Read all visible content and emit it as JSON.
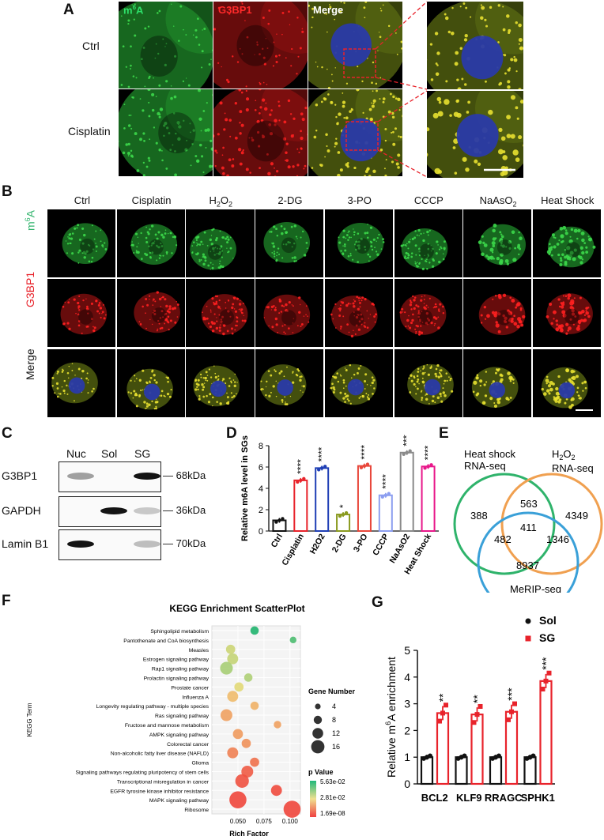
{
  "panels": {
    "A": "A",
    "B": "B",
    "C": "C",
    "D": "D",
    "E": "E",
    "F": "F",
    "G": "G"
  },
  "panel_a": {
    "channels": [
      "m6A",
      "G3BP1",
      "Merge"
    ],
    "rows": [
      "Ctrl",
      "Cisplatin"
    ]
  },
  "panel_b": {
    "conditions": [
      "Ctrl",
      "Cisplatin",
      "H2O2",
      "2-DG",
      "3-PO",
      "CCCP",
      "NaAsO2",
      "Heat Shock"
    ],
    "rows": [
      "m6A",
      "G3BP1",
      "Merge"
    ]
  },
  "panel_c": {
    "lanes": [
      "Nuc",
      "Sol",
      "SG"
    ],
    "proteins": [
      {
        "name": "G3BP1",
        "size": "68kDa",
        "bands": [
          0.3,
          0,
          1.0
        ]
      },
      {
        "name": "GAPDH",
        "size": "36kDa",
        "bands": [
          0,
          1.0,
          0.1
        ]
      },
      {
        "name": "Lamin B1",
        "size": "70kDa",
        "bands": [
          1.0,
          0,
          0.15
        ]
      }
    ]
  },
  "panel_e": {
    "sets": [
      "Heat shock RNA-seq",
      "H2O2 RNA-seq",
      "MeRIP-seq"
    ],
    "colors": [
      "#2fb36b",
      "#f0a050",
      "#3aa0d8"
    ],
    "regions": {
      "hs_only": "388",
      "h2o2_only": "4349",
      "merip_only": "8937",
      "hs_h2o2": "563",
      "hs_merip": "482",
      "h2o2_merip": "1346",
      "all": "411"
    }
  },
  "chart_data": [
    {
      "panel": "D",
      "type": "bar",
      "ylabel": "Relative m6A level in SGs",
      "ylim": [
        0,
        8
      ],
      "yticks": [
        0,
        2,
        4,
        6,
        8
      ],
      "categories": [
        "Ctrl",
        "Cisplatin",
        "H2O2",
        "2-DG",
        "3-PO",
        "CCCP",
        "NaAsO2",
        "Heat Shock"
      ],
      "values": [
        1.0,
        4.75,
        5.9,
        1.55,
        6.1,
        3.35,
        7.35,
        6.05
      ],
      "significance": [
        "",
        "****",
        "****",
        "*",
        "****",
        "****",
        "****",
        "****"
      ],
      "colors": [
        "#111111",
        "#e8232b",
        "#1f3fb5",
        "#8a9a1f",
        "#e8463a",
        "#8c9ef0",
        "#8a8a8a",
        "#e8178a"
      ]
    },
    {
      "panel": "F",
      "type": "scatter",
      "title": "KEGG Enrichment ScatterPlot",
      "xlabel": "Rich Factor",
      "ylabel": "KEGG Term",
      "xlim": [
        0.025,
        0.11
      ],
      "xticks": [
        "0.050",
        "0.075",
        "0.100"
      ],
      "size_legend_title": "Gene Number",
      "size_legend": [
        "4",
        "8",
        "12",
        "16"
      ],
      "color_legend_title": "p Value",
      "color_legend": [
        "5.63e-02",
        "2.81e-02",
        "1.69e-08"
      ],
      "terms": [
        {
          "name": "Sphingolipid metabolism",
          "x": 0.066,
          "genes": 6,
          "p": 0.056
        },
        {
          "name": "Pantothenate and CoA biosynthesis",
          "x": 0.103,
          "genes": 4,
          "p": 0.05
        },
        {
          "name": "Measles",
          "x": 0.043,
          "genes": 7,
          "p": 0.033
        },
        {
          "name": "Estrogen signaling pathway",
          "x": 0.045,
          "genes": 9,
          "p": 0.034
        },
        {
          "name": "Rap1 signaling pathway",
          "x": 0.039,
          "genes": 11,
          "p": 0.038
        },
        {
          "name": "Prolactin signaling pathway",
          "x": 0.06,
          "genes": 6,
          "p": 0.037
        },
        {
          "name": "Prostate cancer",
          "x": 0.051,
          "genes": 7,
          "p": 0.03
        },
        {
          "name": "Influenza A",
          "x": 0.045,
          "genes": 9,
          "p": 0.022
        },
        {
          "name": "Longevity regulating pathway - multiple species",
          "x": 0.066,
          "genes": 6,
          "p": 0.02
        },
        {
          "name": "Ras signaling pathway",
          "x": 0.039,
          "genes": 10,
          "p": 0.017
        },
        {
          "name": "Fructose and mannose metabolism",
          "x": 0.088,
          "genes": 5,
          "p": 0.017
        },
        {
          "name": "AMPK signaling pathway",
          "x": 0.05,
          "genes": 8,
          "p": 0.016
        },
        {
          "name": "Colorectal cancer",
          "x": 0.058,
          "genes": 7,
          "p": 0.014
        },
        {
          "name": "Non-alcoholic fatty liver disease (NAFLD)",
          "x": 0.045,
          "genes": 9,
          "p": 0.011
        },
        {
          "name": "Glioma",
          "x": 0.066,
          "genes": 7,
          "p": 0.008
        },
        {
          "name": "Signaling pathways regulating pluripotency of stem cells",
          "x": 0.059,
          "genes": 10,
          "p": 0.004
        },
        {
          "name": "Transcriptional misregulation in cancer",
          "x": 0.054,
          "genes": 12,
          "p": 0.002
        },
        {
          "name": "EGFR tyrosine kinase inhibitor resistance",
          "x": 0.087,
          "genes": 9,
          "p": 0.001
        },
        {
          "name": "MAPK signaling pathway",
          "x": 0.05,
          "genes": 16,
          "p": 0.0002
        },
        {
          "name": "Ribosome",
          "x": 0.102,
          "genes": 16,
          "p": 1.69e-08
        }
      ]
    },
    {
      "panel": "G",
      "type": "bar",
      "ylabel": "Relative m6A enrichment",
      "ylim": [
        0,
        5
      ],
      "yticks": [
        0,
        1,
        2,
        3,
        4,
        5
      ],
      "categories": [
        "BCL2",
        "KLF9",
        "RRAGC",
        "SPHK1"
      ],
      "series": [
        {
          "name": "Sol",
          "color": "#111111",
          "values": [
            1.0,
            1.0,
            1.0,
            1.0
          ]
        },
        {
          "name": "SG",
          "color": "#e8232b",
          "values": [
            2.65,
            2.6,
            2.7,
            3.85
          ]
        }
      ],
      "significance": [
        "**",
        "**",
        "***",
        "***"
      ]
    }
  ]
}
